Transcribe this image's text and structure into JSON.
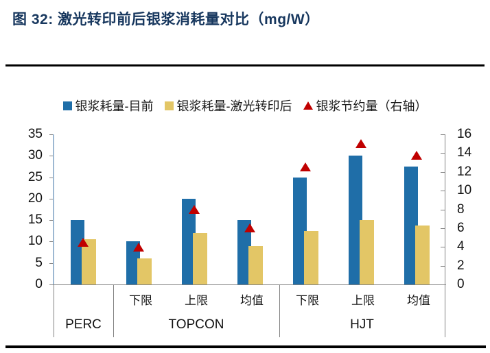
{
  "figure": {
    "title": "图 32: 激光转印前后银浆消耗量对比（mg/W）"
  },
  "legend": [
    {
      "label": "银浆耗量-目前",
      "swatch": "square",
      "color": "#1F6EA8"
    },
    {
      "label": "银浆耗量-激光转印后",
      "swatch": "square",
      "color": "#E3C666"
    },
    {
      "label": "银浆节约量（右轴）",
      "swatch": "triangle",
      "color": "#C00000"
    }
  ],
  "chart_data": {
    "type": "bar",
    "title": "激光转印前后银浆消耗量对比（mg/W）",
    "categories": [
      "PERC",
      "TOPCON-下限",
      "TOPCON-上限",
      "TOPCON-均值",
      "HJT-下限",
      "HJT-上限",
      "HJT-均值"
    ],
    "category_sublabels": [
      "",
      "下限",
      "上限",
      "均值",
      "下限",
      "上限",
      "均值"
    ],
    "category_groups": [
      {
        "label": "PERC",
        "span": 1
      },
      {
        "label": "TOPCON",
        "span": 3
      },
      {
        "label": "HJT",
        "span": 3
      }
    ],
    "series": [
      {
        "name": "银浆耗量-目前",
        "type": "bar",
        "axis": "left",
        "color": "#1F6EA8",
        "values": [
          15,
          10,
          20,
          15,
          25,
          30,
          27.5
        ]
      },
      {
        "name": "银浆耗量-激光转印后",
        "type": "bar",
        "axis": "left",
        "color": "#E3C666",
        "values": [
          10.5,
          6,
          12,
          9,
          12.5,
          15,
          13.75
        ]
      },
      {
        "name": "银浆节约量（右轴）",
        "type": "triangle-marker",
        "axis": "right",
        "color": "#C00000",
        "values": [
          4.5,
          4,
          8,
          6,
          12.5,
          15,
          13.75
        ]
      }
    ],
    "left_axis": {
      "min": 0,
      "max": 35,
      "ticks": [
        35,
        30,
        25,
        20,
        15,
        10,
        5,
        0
      ]
    },
    "right_axis": {
      "min": 0,
      "max": 16,
      "ticks": [
        16,
        14,
        12,
        10,
        8,
        6,
        4,
        2,
        0
      ]
    },
    "grid": false,
    "legend_position": "top"
  }
}
